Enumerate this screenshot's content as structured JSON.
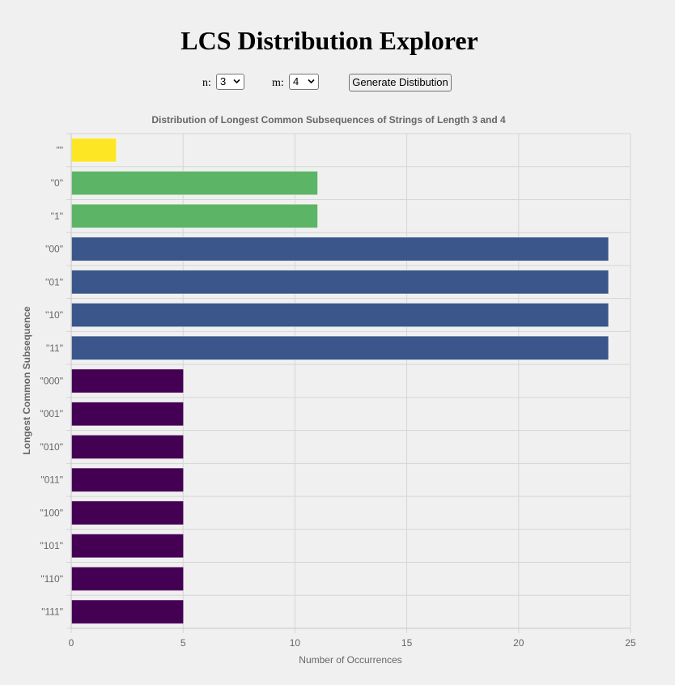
{
  "app": {
    "title": "LCS Distribution Explorer"
  },
  "controls": {
    "n_label": "n:",
    "n_value": "3",
    "m_label": "m:",
    "m_value": "4",
    "generate_label": "Generate Distibution"
  },
  "chart_data": {
    "type": "bar",
    "orientation": "horizontal",
    "title": "Distribution of Longest Common Subsequences of Strings of Length 3 and 4",
    "xlabel": "Number of Occurrences",
    "ylabel": "Longest Common Subsequence",
    "xlim": [
      0,
      25
    ],
    "xticks": [
      0,
      5,
      10,
      15,
      20,
      25
    ],
    "grid": true,
    "categories": [
      "\"\"",
      "\"0\"",
      "\"1\"",
      "\"00\"",
      "\"01\"",
      "\"10\"",
      "\"11\"",
      "\"000\"",
      "\"001\"",
      "\"010\"",
      "\"011\"",
      "\"100\"",
      "\"101\"",
      "\"110\"",
      "\"111\""
    ],
    "values": [
      2,
      11,
      11,
      24,
      24,
      24,
      24,
      5,
      5,
      5,
      5,
      5,
      5,
      5,
      5
    ],
    "colors": [
      "#fde725",
      "#5cb466",
      "#5cb466",
      "#3a568a",
      "#3a568a",
      "#3a568a",
      "#3a568a",
      "#440154",
      "#440154",
      "#440154",
      "#440154",
      "#440154",
      "#440154",
      "#440154",
      "#440154"
    ]
  }
}
